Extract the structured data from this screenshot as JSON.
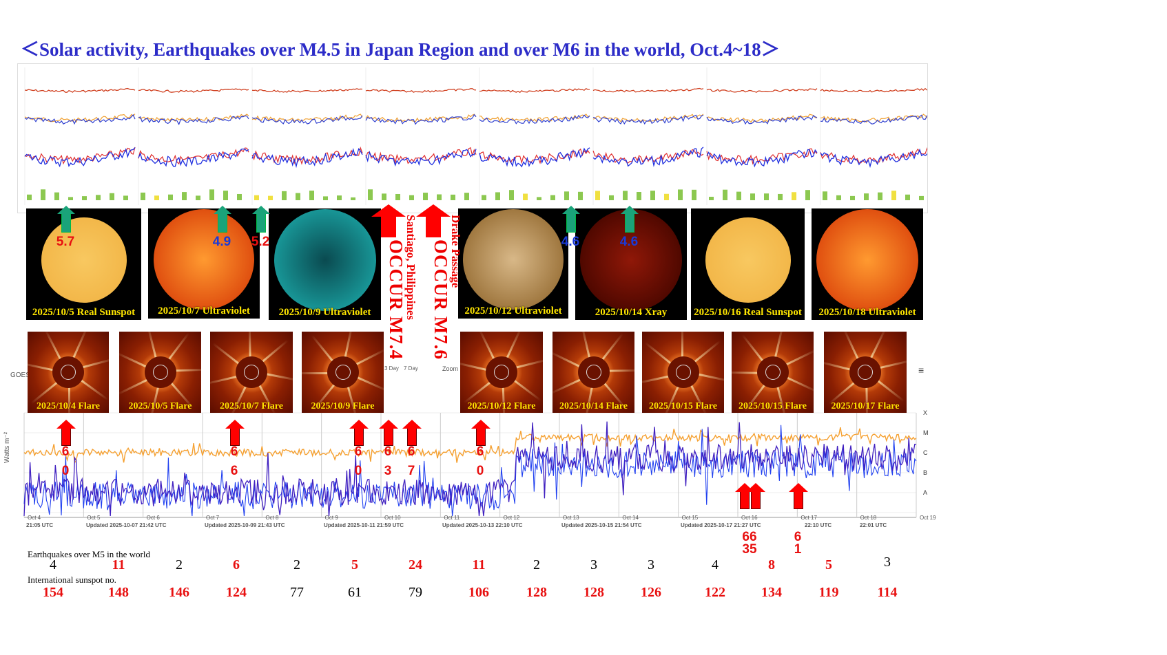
{
  "title": "＜Solar activity, Earthquakes over M4.5 in Japan Region and over M6 in the world, Oct.4~18＞",
  "colors": {
    "title": "#2c2cc8",
    "label": "#ffe600",
    "quake_red": "#e81010",
    "japan_arrow": "#1aa37a",
    "goes_long": "#f5a030",
    "goes_short": "#4020c0"
  },
  "sun_images": [
    {
      "label": "2025/10/5 Real Sunspot",
      "type": "sunspot"
    },
    {
      "label": "2025/10/7 Ultraviolet",
      "type": "uv-orange"
    },
    {
      "label": "2025/10/9 Ultraviolet",
      "type": "uv-teal"
    },
    {
      "label": "2025/10/12 Ultraviolet",
      "type": "uv-gold"
    },
    {
      "label": "2025/10/14 Xray",
      "type": "xray"
    },
    {
      "label": "2025/10/16 Real Sunspot",
      "type": "sunspot"
    },
    {
      "label": "2025/10/18 Ultraviolet",
      "type": "uv-orange"
    }
  ],
  "japan_quakes": [
    {
      "mag": "5.7",
      "digits": [
        "5",
        "7"
      ],
      "color": "#e81010"
    },
    {
      "mag": "4.9",
      "digits": [
        "4",
        "9"
      ],
      "color": "#1a3ad8"
    },
    {
      "mag": "5.2",
      "digits": [
        "5",
        "2"
      ],
      "color": "#e81010"
    },
    {
      "mag": "4.6",
      "digits": [
        "4",
        "6"
      ],
      "color": "#1a3ad8"
    },
    {
      "mag": "4.6",
      "digits": [
        "4",
        "6"
      ],
      "color": "#1a3ad8"
    }
  ],
  "major_quakes": [
    {
      "place": "Santiago, Philippines",
      "occur": "OCCUR M7.4"
    },
    {
      "place": "Drake Passage",
      "occur": "OCCUR M7.6"
    }
  ],
  "flare_images": [
    "2025/10/4 Flare",
    "2025/10/5 Flare",
    "2025/10/7 Flare",
    "2025/10/9 Flare",
    "2025/10/12 Flare",
    "2025/10/14 Flare",
    "2025/10/15 Flare",
    "2025/10/15 Flare",
    "2025/10/17 Flare"
  ],
  "world_quakes_m6": [
    {
      "digits": [
        "6",
        "0"
      ]
    },
    {
      "digits": [
        "6",
        "6"
      ]
    },
    {
      "digits": [
        "6",
        "0"
      ]
    },
    {
      "digits": [
        "6",
        "3"
      ]
    },
    {
      "digits": [
        "6",
        "7"
      ]
    },
    {
      "digits": [
        "6",
        "0"
      ]
    }
  ],
  "world_quakes_m6_late": [
    {
      "top": "66",
      "bottom": "35"
    },
    {
      "top": "6",
      "bottom": "1"
    }
  ],
  "goes": {
    "ylabel": "Watts m⁻²",
    "ylabel_prefix": "GOES",
    "classes": [
      "X",
      "M",
      "C",
      "B",
      "A"
    ],
    "dates": [
      "Oct 4",
      "Oct 5",
      "Oct 6",
      "Oct 7",
      "Oct 8",
      "Oct 9",
      "Oct 10",
      "Oct 11",
      "Oct 12",
      "Oct 13",
      "Oct 14",
      "Oct 15",
      "Oct 16",
      "Oct 17",
      "Oct 18",
      "Oct 19"
    ],
    "updated": [
      "21:05 UTC",
      "Updated 2025-10-07 21:42 UTC",
      "Updated 2025-10-09 21:43 UTC",
      "Updated 2025-10-11 21:59 UTC",
      "Updated 2025-10-13 22:10 UTC",
      "Updated 2025-10-15 21:54 UTC",
      "Updated 2025-10-17 21:27 UTC",
      "22:10 UTC",
      "22:01 UTC"
    ],
    "buttons": [
      "3 Day",
      "7 Day"
    ],
    "zoom": "Zoom"
  },
  "earthquakes_row": {
    "label": "Earthquakes over M5 in the world",
    "values": [
      {
        "v": "4",
        "red": false
      },
      {
        "v": "11",
        "red": true
      },
      {
        "v": "2",
        "red": false
      },
      {
        "v": "6",
        "red": true
      },
      {
        "v": "2",
        "red": false
      },
      {
        "v": "5",
        "red": true
      },
      {
        "v": "24",
        "red": true
      },
      {
        "v": "11",
        "red": true
      },
      {
        "v": "2",
        "red": false
      },
      {
        "v": "3",
        "red": false
      },
      {
        "v": "3",
        "red": false
      },
      {
        "v": "4",
        "red": false
      },
      {
        "v": "8",
        "red": true
      },
      {
        "v": "5",
        "red": true
      },
      {
        "v": "3",
        "red": false
      }
    ]
  },
  "sunspot_row": {
    "label": "International sunspot no.",
    "values": [
      {
        "v": "154",
        "red": true
      },
      {
        "v": "148",
        "red": true
      },
      {
        "v": "146",
        "red": true
      },
      {
        "v": "124",
        "red": true
      },
      {
        "v": "77",
        "red": false
      },
      {
        "v": "61",
        "red": false
      },
      {
        "v": "79",
        "red": false
      },
      {
        "v": "106",
        "red": true
      },
      {
        "v": "128",
        "red": true
      },
      {
        "v": "128",
        "red": true
      },
      {
        "v": "126",
        "red": true
      },
      {
        "v": "122",
        "red": true
      },
      {
        "v": "134",
        "red": true
      },
      {
        "v": "119",
        "red": true
      },
      {
        "v": "114",
        "red": true
      }
    ]
  }
}
